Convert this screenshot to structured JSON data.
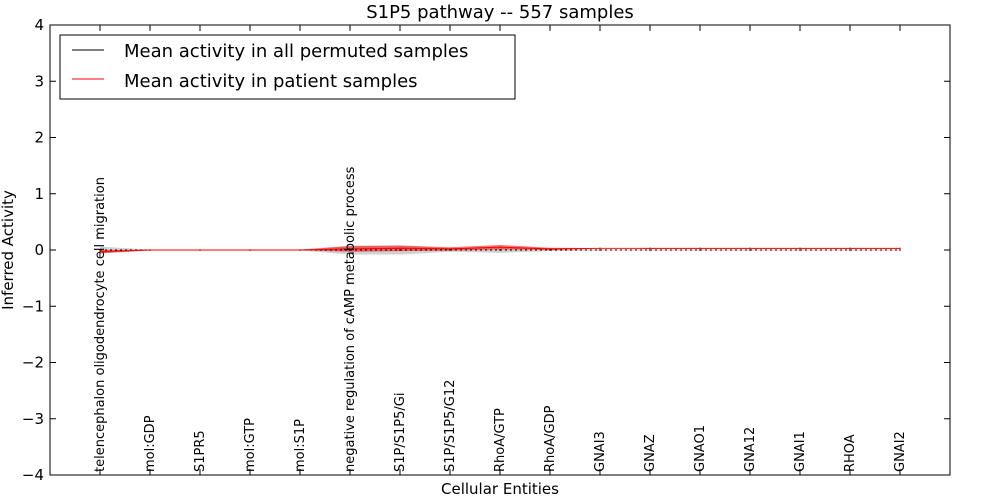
{
  "chart_data": {
    "type": "line",
    "title": "S1P5 pathway -- 557 samples",
    "xlabel": "Cellular Entities",
    "ylabel": "Inferred Activity",
    "ylim": [
      -4,
      4
    ],
    "yticks": [
      4,
      3,
      2,
      1,
      0,
      -1,
      -2,
      -3,
      -4
    ],
    "ytick_labels": [
      "4",
      "3",
      "2",
      "1",
      "0",
      "−1",
      "−2",
      "−3",
      "−4"
    ],
    "categories": [
      "telencephalon oligodendrocyte cell migration",
      "mol:GDP",
      "S1PR5",
      "mol:GTP",
      "mol:S1P",
      "negative regulation of cAMP metabolic process",
      "S1P/S1P5/Gi",
      "S1P/S1P5/G12",
      "RhoA/GTP",
      "RhoA/GDP",
      "GNAI3",
      "GNAZ",
      "GNAO1",
      "GNA12",
      "GNAI1",
      "RHOA",
      "GNAI2"
    ],
    "series": [
      {
        "name": "Mean activity in all permuted samples",
        "color": "#000000",
        "values": [
          0,
          0,
          0,
          0,
          0,
          0,
          0,
          0,
          0,
          0,
          0,
          0,
          0,
          0,
          0,
          0,
          0
        ],
        "band": [
          0.06,
          0.01,
          0.01,
          0.01,
          0.01,
          0.08,
          0.08,
          0.03,
          0.05,
          0.02,
          0.01,
          0.01,
          0.01,
          0.01,
          0.01,
          0.01,
          0.01
        ]
      },
      {
        "name": "Mean activity in patient samples",
        "color": "#ff0000",
        "values": [
          -0.03,
          0,
          0,
          0,
          0,
          0.02,
          0.03,
          0.02,
          0.05,
          0.02,
          0.03,
          0.03,
          0.03,
          0.03,
          0.03,
          0.03,
          0.03
        ],
        "band": [
          0.03,
          0.005,
          0.005,
          0.005,
          0.005,
          0.05,
          0.05,
          0.03,
          0.04,
          0.02,
          0.005,
          0.005,
          0.005,
          0.005,
          0.005,
          0.005,
          0.005
        ]
      }
    ],
    "legend": "top-left"
  }
}
